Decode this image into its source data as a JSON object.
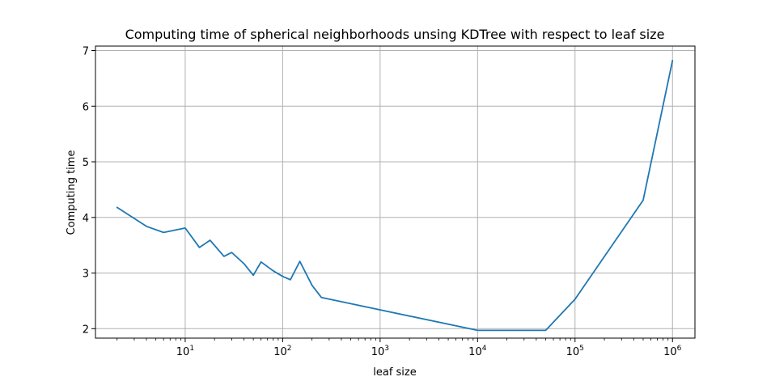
{
  "chart_data": {
    "type": "line",
    "title": "Computing time of spherical neighborhoods unsing KDTree with respect to leaf size",
    "xlabel": "leaf size",
    "ylabel": "Computing time",
    "xscale": "log",
    "xlim": [
      1.2,
      1700000
    ],
    "ylim": [
      1.83,
      7.08
    ],
    "grid": true,
    "line_color": "#1f77b4",
    "x_ticks": [
      {
        "value": 10,
        "base": "10",
        "exp": "1"
      },
      {
        "value": 100,
        "base": "10",
        "exp": "2"
      },
      {
        "value": 1000,
        "base": "10",
        "exp": "3"
      },
      {
        "value": 10000,
        "base": "10",
        "exp": "4"
      },
      {
        "value": 100000,
        "base": "10",
        "exp": "5"
      },
      {
        "value": 1000000,
        "base": "10",
        "exp": "6"
      }
    ],
    "y_ticks": [
      {
        "value": 2,
        "label": "2"
      },
      {
        "value": 3,
        "label": "3"
      },
      {
        "value": 4,
        "label": "4"
      },
      {
        "value": 5,
        "label": "5"
      },
      {
        "value": 6,
        "label": "6"
      },
      {
        "value": 7,
        "label": "7"
      }
    ],
    "series": [
      {
        "x": [
          2,
          4,
          6,
          10,
          14,
          18,
          25,
          30,
          40,
          50,
          60,
          80,
          100,
          120,
          150,
          200,
          250,
          10000,
          50000,
          100000,
          500000,
          1000000
        ],
        "y": [
          4.18,
          3.84,
          3.73,
          3.81,
          3.46,
          3.59,
          3.3,
          3.37,
          3.17,
          2.96,
          3.2,
          3.04,
          2.94,
          2.88,
          3.21,
          2.78,
          2.56,
          1.97,
          1.97,
          2.53,
          4.31,
          6.82
        ]
      }
    ]
  }
}
